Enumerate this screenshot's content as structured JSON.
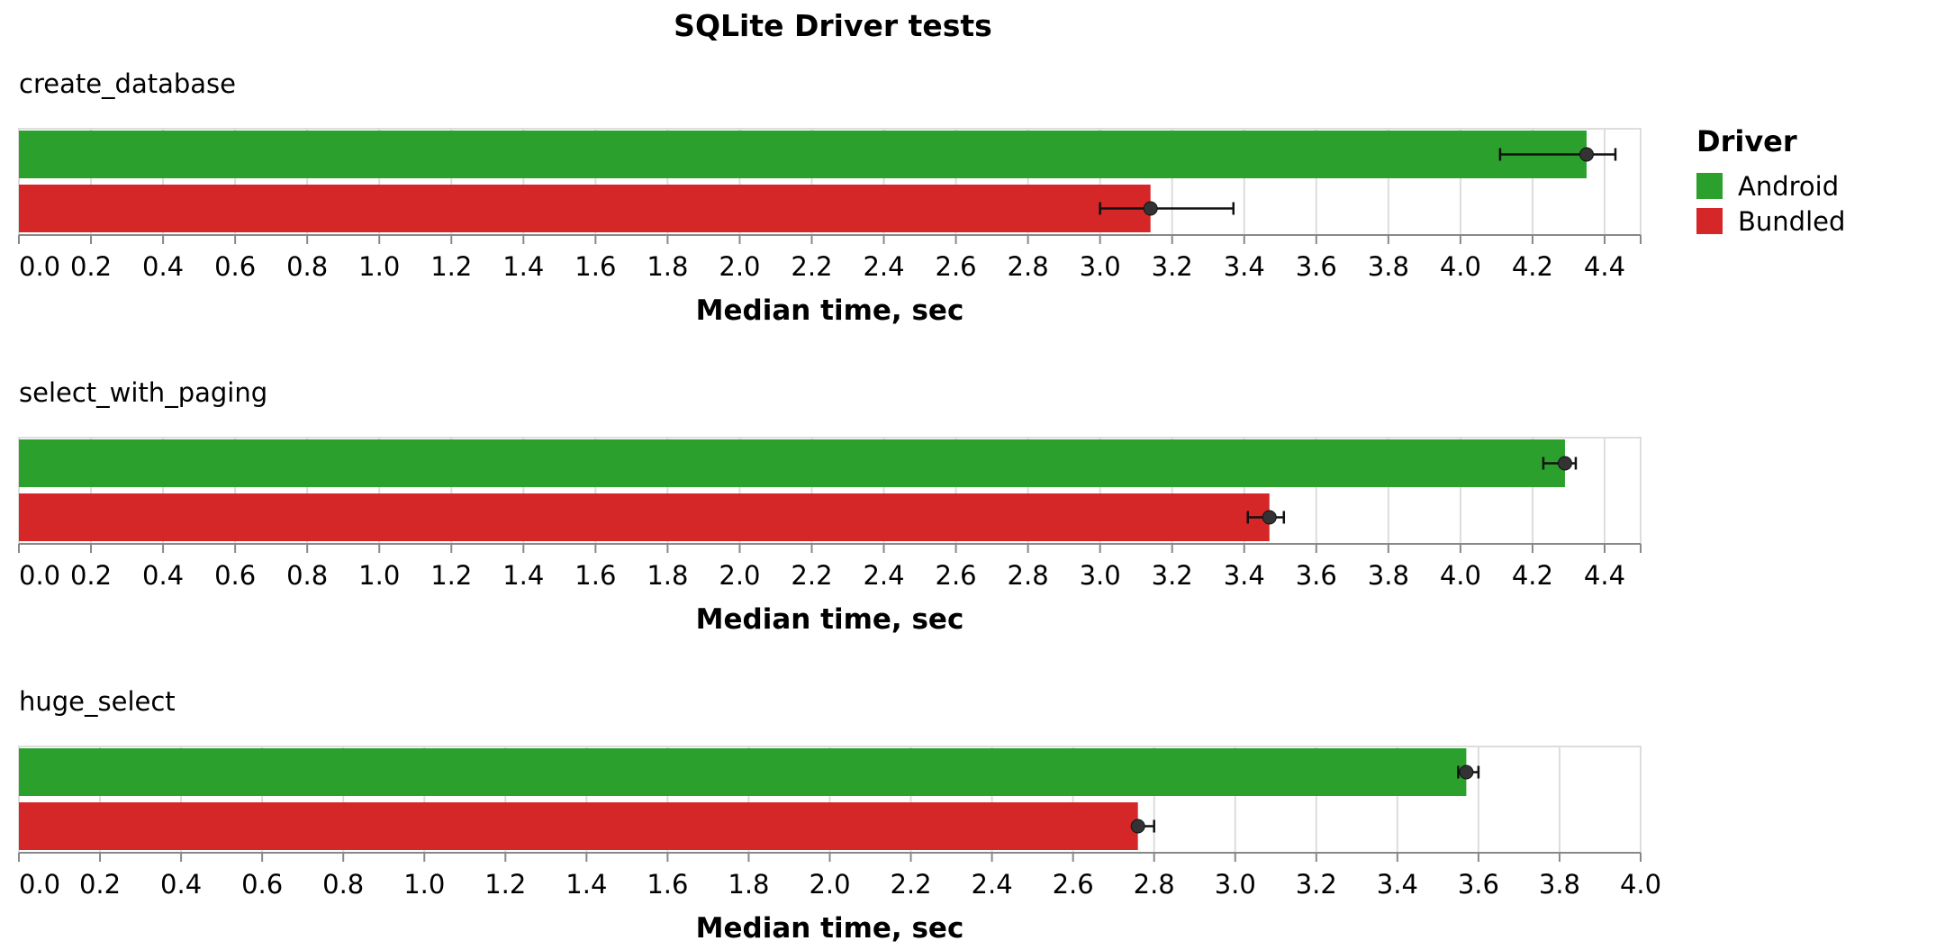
{
  "chart_data": {
    "type": "bar",
    "title": "SQLite Driver tests",
    "orientation": "horizontal",
    "legend": {
      "title": "Driver",
      "position": "top-right",
      "entries": [
        {
          "name": "Android",
          "color": "#2ca02c"
        },
        {
          "name": "Bundled",
          "color": "#d62728"
        }
      ]
    },
    "panels": [
      {
        "name": "create_database",
        "xlabel": "Median time, sec",
        "xlim": [
          0,
          4.5
        ],
        "ticks": [
          "0.0",
          "0.2",
          "0.4",
          "0.6",
          "0.8",
          "1.0",
          "1.2",
          "1.4",
          "1.6",
          "1.8",
          "2.0",
          "2.2",
          "2.4",
          "2.6",
          "2.8",
          "3.0",
          "3.2",
          "3.4",
          "3.6",
          "3.8",
          "4.0",
          "4.2",
          "4.4"
        ],
        "grid": true,
        "series": [
          {
            "name": "Android",
            "value": 4.35,
            "err_low": 4.11,
            "err_high": 4.43
          },
          {
            "name": "Bundled",
            "value": 3.14,
            "err_low": 3.0,
            "err_high": 3.37
          }
        ]
      },
      {
        "name": "select_with_paging",
        "xlabel": "Median time, sec",
        "xlim": [
          0,
          4.5
        ],
        "ticks": [
          "0.0",
          "0.2",
          "0.4",
          "0.6",
          "0.8",
          "1.0",
          "1.2",
          "1.4",
          "1.6",
          "1.8",
          "2.0",
          "2.2",
          "2.4",
          "2.6",
          "2.8",
          "3.0",
          "3.2",
          "3.4",
          "3.6",
          "3.8",
          "4.0",
          "4.2",
          "4.4"
        ],
        "grid": true,
        "series": [
          {
            "name": "Android",
            "value": 4.29,
            "err_low": 4.23,
            "err_high": 4.32
          },
          {
            "name": "Bundled",
            "value": 3.47,
            "err_low": 3.41,
            "err_high": 3.51
          }
        ]
      },
      {
        "name": "huge_select",
        "xlabel": "Median time, sec",
        "xlim": [
          0,
          4.0
        ],
        "ticks": [
          "0.0",
          "0.2",
          "0.4",
          "0.6",
          "0.8",
          "1.0",
          "1.2",
          "1.4",
          "1.6",
          "1.8",
          "2.0",
          "2.2",
          "2.4",
          "2.6",
          "2.8",
          "3.0",
          "3.2",
          "3.4",
          "3.6",
          "3.8",
          "4.0"
        ],
        "grid": true,
        "series": [
          {
            "name": "Android",
            "value": 3.57,
            "err_low": 3.55,
            "err_high": 3.6
          },
          {
            "name": "Bundled",
            "value": 2.76,
            "err_low": 2.76,
            "err_high": 2.8
          }
        ]
      }
    ]
  }
}
